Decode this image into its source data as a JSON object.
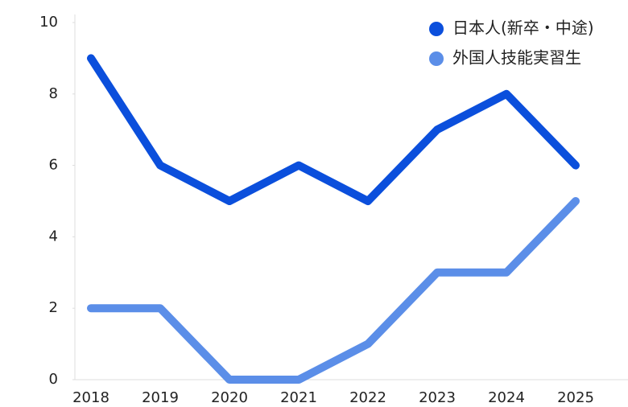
{
  "chart_data": {
    "type": "line",
    "categories": [
      "2018",
      "2019",
      "2020",
      "2021",
      "2022",
      "2023",
      "2024",
      "2025"
    ],
    "series": [
      {
        "name": "日本人(新卒・中途)",
        "color": "#0b4fdc",
        "values": [
          9,
          6,
          5,
          6,
          5,
          7,
          8,
          6
        ]
      },
      {
        "name": "外国人技能実習生",
        "color": "#5b8ee8",
        "values": [
          2,
          2,
          0,
          0,
          1,
          3,
          3,
          5
        ]
      }
    ],
    "ylim": [
      0,
      10
    ],
    "yticks": [
      0,
      2,
      4,
      6,
      8,
      10
    ],
    "grid": false,
    "legend": "top-right"
  }
}
